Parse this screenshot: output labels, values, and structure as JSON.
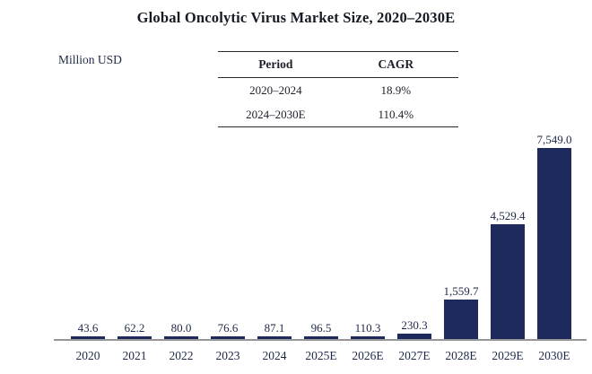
{
  "title": "Global Oncolytic Virus Market Size, 2020–2030E",
  "y_axis_label": "Million USD",
  "cagr_table": {
    "headers": [
      "Period",
      "CAGR"
    ],
    "rows": [
      [
        "2020–2024",
        "18.9%"
      ],
      [
        "2024–2030E",
        "110.4%"
      ]
    ]
  },
  "chart_data": {
    "type": "bar",
    "title": "Global Oncolytic Virus Market Size, 2020–2030E",
    "xlabel": "",
    "ylabel": "Million USD",
    "categories": [
      "2020",
      "2021",
      "2022",
      "2023",
      "2024",
      "2025E",
      "2026E",
      "2027E",
      "2028E",
      "2029E",
      "2030E"
    ],
    "values": [
      43.6,
      62.2,
      80.0,
      76.6,
      87.1,
      96.5,
      110.3,
      230.3,
      1559.7,
      4529.4,
      7549.0
    ],
    "value_labels": [
      "43.6",
      "62.2",
      "80.0",
      "76.6",
      "87.1",
      "96.5",
      "110.3",
      "230.3",
      "1,559.7",
      "4,529.4",
      "7,549.0"
    ],
    "ylim": [
      0,
      7549
    ],
    "grid": false,
    "legend": false,
    "bar_color": "#1f2a5c",
    "axis_color": "#969696",
    "label_color": "#1e2947"
  }
}
